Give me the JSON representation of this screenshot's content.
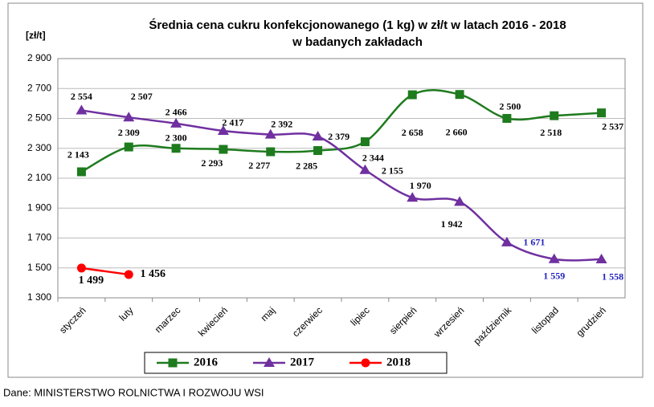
{
  "chart_data": {
    "type": "line",
    "title": "Średnia cena cukru konfekcjonowanego (1 kg) w zł/t w latach 2016 - 2018",
    "subtitle": "w badanych zakładach",
    "y_label": "[zł/t]",
    "source": "Dane: MINISTERSTWO ROLNICTWA I ROZWOJU WSI",
    "categories": [
      "styczeń",
      "luty",
      "marzec",
      "kwiecień",
      "maj",
      "czerwiec",
      "lipiec",
      "sierpień",
      "wrzesień",
      "październik",
      "listopad",
      "grudzień"
    ],
    "series": [
      {
        "name": "2016",
        "color": "#1e7b1e",
        "marker": "square",
        "values": [
          2143,
          2309,
          2300,
          2293,
          2277,
          2285,
          2344,
          2658,
          2660,
          2500,
          2518,
          2537
        ],
        "value_labels": [
          "2 143",
          "2 309",
          "2 300",
          "2 293",
          "2 277",
          "2 285",
          "2 344",
          "2 658",
          "2 660",
          "2 500",
          "2 518",
          "2 537"
        ]
      },
      {
        "name": "2017",
        "color": "#7030a0",
        "marker": "triangle",
        "values": [
          2554,
          2507,
          2466,
          2417,
          2392,
          2379,
          2155,
          1970,
          1942,
          1671,
          1559,
          1558
        ],
        "value_labels": [
          "2 554",
          "2 507",
          "2 466",
          "2 417",
          "2 392",
          "2 379",
          "2 155",
          "1 970",
          "1 942",
          "1 671",
          "1 559",
          "1 558"
        ]
      },
      {
        "name": "2018",
        "color": "#ff0000",
        "marker": "circle",
        "values": [
          1499,
          1456,
          null,
          null,
          null,
          null,
          null,
          null,
          null,
          null,
          null,
          null
        ],
        "value_labels": [
          "1 499",
          "1 456",
          null,
          null,
          null,
          null,
          null,
          null,
          null,
          null,
          null,
          null
        ]
      }
    ],
    "ylim": [
      1300,
      2900
    ],
    "yticks": [
      {
        "value": 1300,
        "label": "1 300"
      },
      {
        "value": 1500,
        "label": "1 500"
      },
      {
        "value": 1700,
        "label": "1 700"
      },
      {
        "value": 1900,
        "label": "1 900"
      },
      {
        "value": 2100,
        "label": "2 100"
      },
      {
        "value": 2300,
        "label": "2 300"
      },
      {
        "value": 2500,
        "label": "2 500"
      },
      {
        "value": 2700,
        "label": "2 700"
      },
      {
        "value": 2900,
        "label": "2 900"
      }
    ],
    "grid": true,
    "legend": "bottom"
  }
}
